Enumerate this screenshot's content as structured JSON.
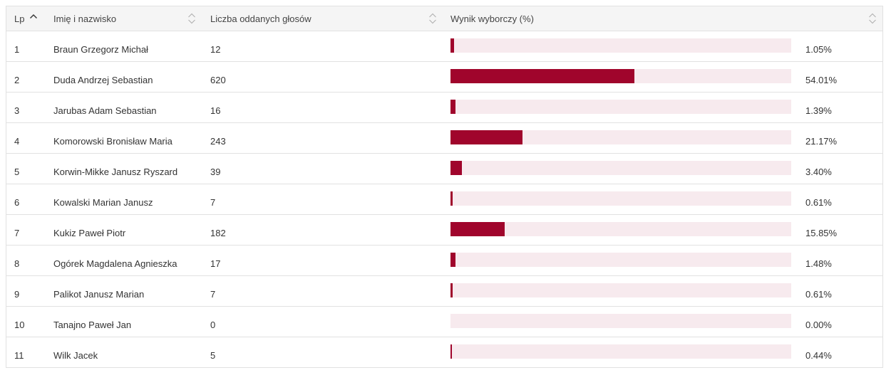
{
  "table": {
    "headers": {
      "lp": "Lp",
      "name": "Imię i nazwisko",
      "votes": "Liczba oddanych głosów",
      "result": "Wynik wyborczy (%)"
    },
    "rows": [
      {
        "lp": "1",
        "name": "Braun Grzegorz Michał",
        "votes": "12",
        "percent_label": "1.05%",
        "percent": 1.05
      },
      {
        "lp": "2",
        "name": "Duda Andrzej Sebastian",
        "votes": "620",
        "percent_label": "54.01%",
        "percent": 54.01
      },
      {
        "lp": "3",
        "name": "Jarubas Adam Sebastian",
        "votes": "16",
        "percent_label": "1.39%",
        "percent": 1.39
      },
      {
        "lp": "4",
        "name": "Komorowski Bronisław Maria",
        "votes": "243",
        "percent_label": "21.17%",
        "percent": 21.17
      },
      {
        "lp": "5",
        "name": "Korwin-Mikke Janusz Ryszard",
        "votes": "39",
        "percent_label": "3.40%",
        "percent": 3.4
      },
      {
        "lp": "6",
        "name": "Kowalski Marian Janusz",
        "votes": "7",
        "percent_label": "0.61%",
        "percent": 0.61
      },
      {
        "lp": "7",
        "name": "Kukiz Paweł Piotr",
        "votes": "182",
        "percent_label": "15.85%",
        "percent": 15.85
      },
      {
        "lp": "8",
        "name": "Ogórek Magdalena Agnieszka",
        "votes": "17",
        "percent_label": "1.48%",
        "percent": 1.48
      },
      {
        "lp": "9",
        "name": "Palikot Janusz Marian",
        "votes": "7",
        "percent_label": "0.61%",
        "percent": 0.61
      },
      {
        "lp": "10",
        "name": "Tanajno Paweł Jan",
        "votes": "0",
        "percent_label": "0.00%",
        "percent": 0.0
      },
      {
        "lp": "11",
        "name": "Wilk Jacek",
        "votes": "5",
        "percent_label": "0.44%",
        "percent": 0.44
      }
    ]
  },
  "colors": {
    "bar_fill": "#a0052c",
    "bar_track": "#f7eaee",
    "header_bg": "#f5f5f5",
    "border": "#e1e1e1"
  },
  "icons": {
    "sort_active": "chevron-up-icon",
    "sort_inactive": "sort-updown-icon"
  }
}
